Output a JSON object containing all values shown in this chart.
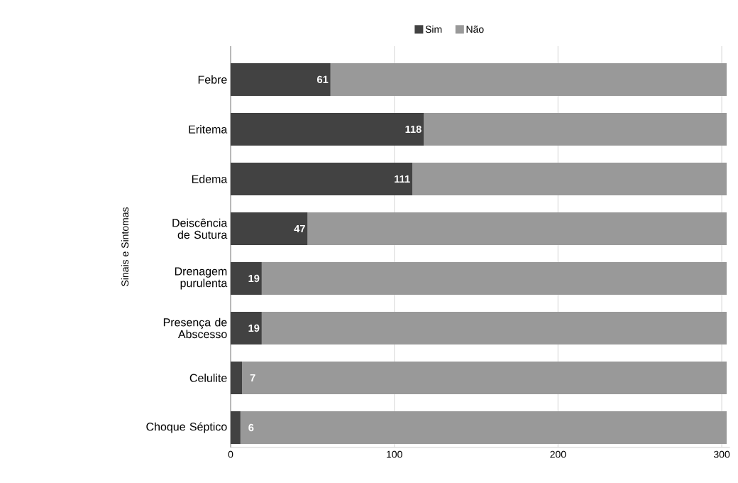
{
  "chart_data": {
    "type": "bar",
    "orientation": "horizontal",
    "stacked": true,
    "ylabel": "Sinais e Sintomas",
    "categories": [
      "Febre",
      "Eritema",
      "Edema",
      "Deiscência de Sutura",
      "Drenagem purulenta",
      "Presença de Abscesso",
      "Celulite",
      "Choque Séptico"
    ],
    "series": [
      {
        "name": "Sim",
        "color": "#424242",
        "values": [
          61,
          118,
          111,
          47,
          19,
          19,
          7,
          6
        ],
        "value_labels": [
          "61",
          "118",
          "111",
          "47",
          "19",
          "19",
          "7",
          "6"
        ]
      },
      {
        "name": "Não",
        "color": "#999999",
        "values": [
          242,
          185,
          192,
          256,
          284,
          284,
          296,
          297
        ]
      }
    ],
    "xlim": [
      0,
      305
    ],
    "xticks": [
      0,
      100,
      200,
      300
    ],
    "grid": "x",
    "legend": "top"
  }
}
